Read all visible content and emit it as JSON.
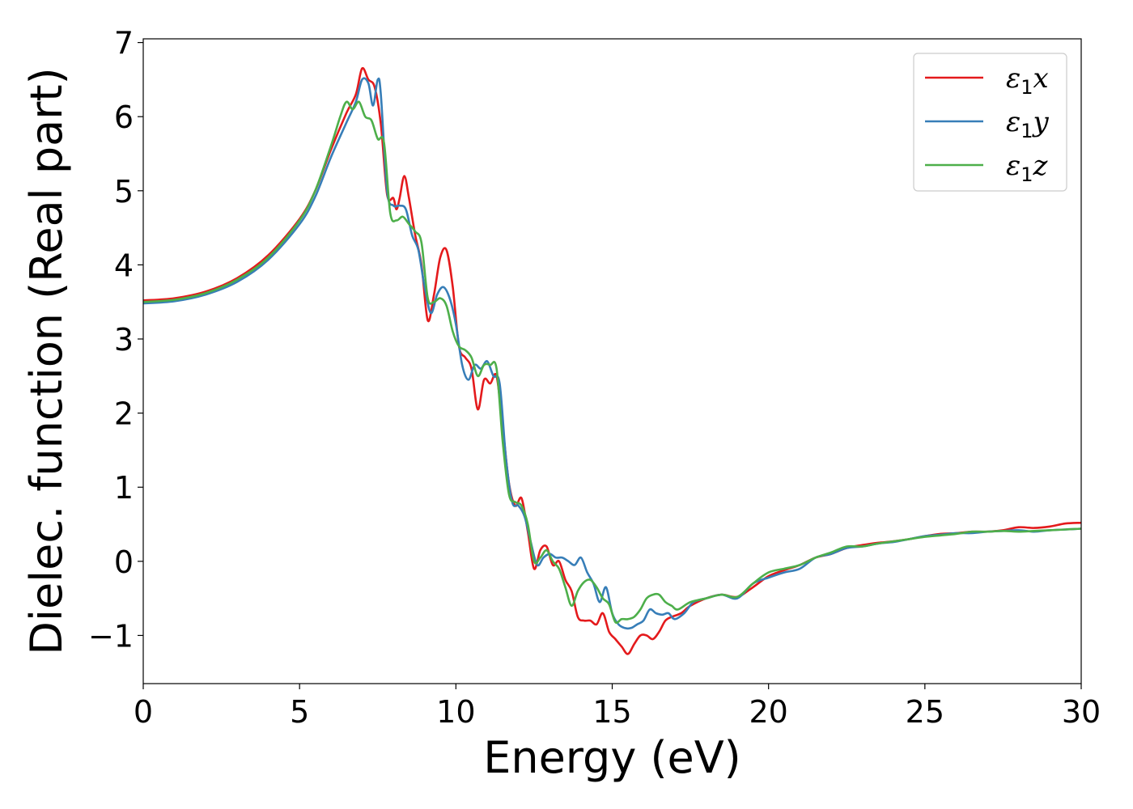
{
  "chart_data": {
    "type": "line",
    "title": "",
    "xlabel": "Energy (eV)",
    "ylabel": "Dielec. function (Real part)",
    "xlim": [
      0,
      30
    ],
    "ylim": [
      -1.65,
      7.05
    ],
    "xticks": [
      0,
      5,
      10,
      15,
      20,
      25,
      30
    ],
    "xtick_labels": [
      "0",
      "5",
      "10",
      "15",
      "20",
      "25",
      "30"
    ],
    "yticks": [
      -1,
      0,
      1,
      2,
      3,
      4,
      5,
      6,
      7
    ],
    "ytick_labels": [
      "−1",
      "0",
      "1",
      "2",
      "3",
      "4",
      "5",
      "6",
      "7"
    ],
    "grid": false,
    "legend_position": "top-right",
    "series": [
      {
        "name": "ε1x",
        "legend_main": "ε",
        "legend_sub": "1",
        "legend_var": "x",
        "color": "#e41a1c",
        "points": [
          [
            0,
            3.52
          ],
          [
            1,
            3.55
          ],
          [
            2,
            3.64
          ],
          [
            3,
            3.82
          ],
          [
            4,
            4.13
          ],
          [
            5,
            4.62
          ],
          [
            5.5,
            5.0
          ],
          [
            6,
            5.55
          ],
          [
            6.5,
            6.05
          ],
          [
            6.8,
            6.3
          ],
          [
            7.0,
            6.65
          ],
          [
            7.2,
            6.5
          ],
          [
            7.4,
            6.4
          ],
          [
            7.6,
            5.9
          ],
          [
            7.8,
            4.95
          ],
          [
            8.0,
            4.9
          ],
          [
            8.1,
            4.75
          ],
          [
            8.2,
            4.9
          ],
          [
            8.35,
            5.2
          ],
          [
            8.5,
            4.9
          ],
          [
            8.7,
            4.4
          ],
          [
            8.9,
            4.0
          ],
          [
            9.1,
            3.25
          ],
          [
            9.3,
            3.6
          ],
          [
            9.5,
            4.1
          ],
          [
            9.7,
            4.2
          ],
          [
            9.9,
            3.7
          ],
          [
            10.1,
            2.9
          ],
          [
            10.3,
            2.75
          ],
          [
            10.5,
            2.6
          ],
          [
            10.7,
            2.05
          ],
          [
            10.9,
            2.45
          ],
          [
            11.1,
            2.4
          ],
          [
            11.3,
            2.5
          ],
          [
            11.5,
            1.8
          ],
          [
            11.7,
            1.05
          ],
          [
            11.9,
            0.75
          ],
          [
            12.1,
            0.85
          ],
          [
            12.3,
            0.4
          ],
          [
            12.5,
            -0.1
          ],
          [
            12.7,
            0.15
          ],
          [
            12.9,
            0.2
          ],
          [
            13.1,
            -0.05
          ],
          [
            13.3,
            0.0
          ],
          [
            13.5,
            -0.25
          ],
          [
            13.7,
            -0.4
          ],
          [
            13.9,
            -0.75
          ],
          [
            14.1,
            -0.8
          ],
          [
            14.3,
            -0.8
          ],
          [
            14.5,
            -0.85
          ],
          [
            14.7,
            -0.7
          ],
          [
            14.9,
            -0.95
          ],
          [
            15.1,
            -1.05
          ],
          [
            15.3,
            -1.15
          ],
          [
            15.5,
            -1.25
          ],
          [
            15.7,
            -1.12
          ],
          [
            15.9,
            -1.0
          ],
          [
            16.1,
            -1.0
          ],
          [
            16.3,
            -1.05
          ],
          [
            16.5,
            -0.95
          ],
          [
            16.7,
            -0.8
          ],
          [
            16.9,
            -0.75
          ],
          [
            17.2,
            -0.7
          ],
          [
            17.5,
            -0.6
          ],
          [
            18,
            -0.5
          ],
          [
            18.5,
            -0.45
          ],
          [
            19,
            -0.48
          ],
          [
            19.5,
            -0.35
          ],
          [
            20,
            -0.2
          ],
          [
            20.5,
            -0.12
          ],
          [
            21,
            -0.05
          ],
          [
            21.5,
            0.05
          ],
          [
            22,
            0.1
          ],
          [
            22.5,
            0.18
          ],
          [
            23,
            0.22
          ],
          [
            23.5,
            0.25
          ],
          [
            24,
            0.27
          ],
          [
            24.5,
            0.3
          ],
          [
            25,
            0.34
          ],
          [
            25.5,
            0.37
          ],
          [
            26,
            0.38
          ],
          [
            26.5,
            0.4
          ],
          [
            27,
            0.4
          ],
          [
            27.5,
            0.42
          ],
          [
            28,
            0.46
          ],
          [
            28.5,
            0.45
          ],
          [
            29,
            0.47
          ],
          [
            29.5,
            0.51
          ],
          [
            30,
            0.52
          ]
        ]
      },
      {
        "name": "ε1y",
        "legend_main": "ε",
        "legend_sub": "1",
        "legend_var": "y",
        "color": "#377eb8",
        "points": [
          [
            0,
            3.48
          ],
          [
            1,
            3.51
          ],
          [
            2,
            3.6
          ],
          [
            3,
            3.77
          ],
          [
            4,
            4.07
          ],
          [
            5,
            4.55
          ],
          [
            5.5,
            4.92
          ],
          [
            6,
            5.45
          ],
          [
            6.5,
            5.92
          ],
          [
            6.8,
            6.2
          ],
          [
            7.0,
            6.5
          ],
          [
            7.2,
            6.45
          ],
          [
            7.35,
            6.15
          ],
          [
            7.5,
            6.5
          ],
          [
            7.6,
            6.3
          ],
          [
            7.8,
            5.0
          ],
          [
            8.0,
            4.8
          ],
          [
            8.2,
            4.8
          ],
          [
            8.4,
            4.75
          ],
          [
            8.6,
            4.4
          ],
          [
            8.8,
            4.2
          ],
          [
            9.0,
            3.7
          ],
          [
            9.2,
            3.35
          ],
          [
            9.4,
            3.6
          ],
          [
            9.6,
            3.7
          ],
          [
            9.8,
            3.55
          ],
          [
            10.0,
            3.2
          ],
          [
            10.2,
            2.65
          ],
          [
            10.4,
            2.45
          ],
          [
            10.6,
            2.65
          ],
          [
            10.8,
            2.6
          ],
          [
            11.0,
            2.7
          ],
          [
            11.2,
            2.5
          ],
          [
            11.4,
            2.4
          ],
          [
            11.6,
            1.4
          ],
          [
            11.8,
            0.8
          ],
          [
            12.0,
            0.75
          ],
          [
            12.2,
            0.6
          ],
          [
            12.4,
            0.25
          ],
          [
            12.6,
            -0.05
          ],
          [
            12.8,
            0.05
          ],
          [
            13.0,
            0.1
          ],
          [
            13.2,
            0.05
          ],
          [
            13.4,
            0.05
          ],
          [
            13.6,
            0.0
          ],
          [
            13.8,
            -0.05
          ],
          [
            14.0,
            0.05
          ],
          [
            14.2,
            -0.15
          ],
          [
            14.4,
            -0.3
          ],
          [
            14.6,
            -0.55
          ],
          [
            14.8,
            -0.35
          ],
          [
            15.0,
            -0.7
          ],
          [
            15.2,
            -0.85
          ],
          [
            15.4,
            -0.9
          ],
          [
            15.6,
            -0.9
          ],
          [
            15.8,
            -0.85
          ],
          [
            16.0,
            -0.8
          ],
          [
            16.2,
            -0.65
          ],
          [
            16.4,
            -0.7
          ],
          [
            16.6,
            -0.72
          ],
          [
            16.8,
            -0.7
          ],
          [
            17.0,
            -0.78
          ],
          [
            17.3,
            -0.7
          ],
          [
            17.6,
            -0.55
          ],
          [
            18,
            -0.5
          ],
          [
            18.5,
            -0.45
          ],
          [
            19,
            -0.5
          ],
          [
            19.5,
            -0.3
          ],
          [
            20,
            -0.22
          ],
          [
            20.5,
            -0.15
          ],
          [
            21,
            -0.1
          ],
          [
            21.5,
            0.05
          ],
          [
            22,
            0.1
          ],
          [
            22.5,
            0.18
          ],
          [
            23,
            0.2
          ],
          [
            23.5,
            0.24
          ],
          [
            24,
            0.26
          ],
          [
            24.5,
            0.3
          ],
          [
            25,
            0.34
          ],
          [
            25.5,
            0.36
          ],
          [
            26,
            0.38
          ],
          [
            26.5,
            0.38
          ],
          [
            27,
            0.4
          ],
          [
            27.5,
            0.41
          ],
          [
            28,
            0.42
          ],
          [
            28.5,
            0.4
          ],
          [
            29,
            0.42
          ],
          [
            29.5,
            0.43
          ],
          [
            30,
            0.44
          ]
        ]
      },
      {
        "name": "ε1z",
        "legend_main": "ε",
        "legend_sub": "1",
        "legend_var": "z",
        "color": "#4daf4a",
        "points": [
          [
            0,
            3.5
          ],
          [
            1,
            3.53
          ],
          [
            2,
            3.62
          ],
          [
            3,
            3.8
          ],
          [
            4,
            4.1
          ],
          [
            5,
            4.6
          ],
          [
            5.5,
            5.0
          ],
          [
            6,
            5.6
          ],
          [
            6.3,
            6.0
          ],
          [
            6.5,
            6.2
          ],
          [
            6.7,
            6.1
          ],
          [
            6.9,
            6.2
          ],
          [
            7.1,
            6.0
          ],
          [
            7.3,
            5.95
          ],
          [
            7.5,
            5.7
          ],
          [
            7.7,
            5.65
          ],
          [
            7.9,
            4.7
          ],
          [
            8.1,
            4.6
          ],
          [
            8.3,
            4.65
          ],
          [
            8.5,
            4.55
          ],
          [
            8.7,
            4.45
          ],
          [
            8.9,
            4.3
          ],
          [
            9.1,
            3.55
          ],
          [
            9.3,
            3.5
          ],
          [
            9.5,
            3.55
          ],
          [
            9.7,
            3.45
          ],
          [
            9.9,
            3.1
          ],
          [
            10.1,
            2.9
          ],
          [
            10.3,
            2.85
          ],
          [
            10.5,
            2.75
          ],
          [
            10.7,
            2.5
          ],
          [
            10.9,
            2.65
          ],
          [
            11.1,
            2.65
          ],
          [
            11.3,
            2.6
          ],
          [
            11.5,
            1.6
          ],
          [
            11.7,
            0.9
          ],
          [
            11.9,
            0.8
          ],
          [
            12.1,
            0.75
          ],
          [
            12.3,
            0.5
          ],
          [
            12.5,
            0.0
          ],
          [
            12.7,
            0.05
          ],
          [
            12.9,
            0.15
          ],
          [
            13.1,
            0.0
          ],
          [
            13.3,
            -0.1
          ],
          [
            13.5,
            -0.35
          ],
          [
            13.7,
            -0.6
          ],
          [
            13.9,
            -0.4
          ],
          [
            14.1,
            -0.28
          ],
          [
            14.3,
            -0.25
          ],
          [
            14.5,
            -0.35
          ],
          [
            14.7,
            -0.5
          ],
          [
            14.9,
            -0.58
          ],
          [
            15.1,
            -0.82
          ],
          [
            15.3,
            -0.78
          ],
          [
            15.5,
            -0.78
          ],
          [
            15.7,
            -0.75
          ],
          [
            15.9,
            -0.65
          ],
          [
            16.1,
            -0.5
          ],
          [
            16.3,
            -0.45
          ],
          [
            16.5,
            -0.45
          ],
          [
            16.7,
            -0.55
          ],
          [
            16.9,
            -0.6
          ],
          [
            17.1,
            -0.65
          ],
          [
            17.5,
            -0.55
          ],
          [
            18,
            -0.5
          ],
          [
            18.5,
            -0.45
          ],
          [
            19,
            -0.48
          ],
          [
            19.5,
            -0.3
          ],
          [
            20,
            -0.15
          ],
          [
            20.5,
            -0.1
          ],
          [
            21,
            -0.05
          ],
          [
            21.5,
            0.05
          ],
          [
            22,
            0.12
          ],
          [
            22.5,
            0.2
          ],
          [
            23,
            0.2
          ],
          [
            23.5,
            0.24
          ],
          [
            24,
            0.27
          ],
          [
            24.5,
            0.3
          ],
          [
            25,
            0.33
          ],
          [
            25.5,
            0.35
          ],
          [
            26,
            0.37
          ],
          [
            26.5,
            0.4
          ],
          [
            27,
            0.4
          ],
          [
            27.5,
            0.41
          ],
          [
            28,
            0.4
          ],
          [
            28.5,
            0.41
          ],
          [
            29,
            0.42
          ],
          [
            29.5,
            0.43
          ],
          [
            30,
            0.44
          ]
        ]
      }
    ]
  }
}
